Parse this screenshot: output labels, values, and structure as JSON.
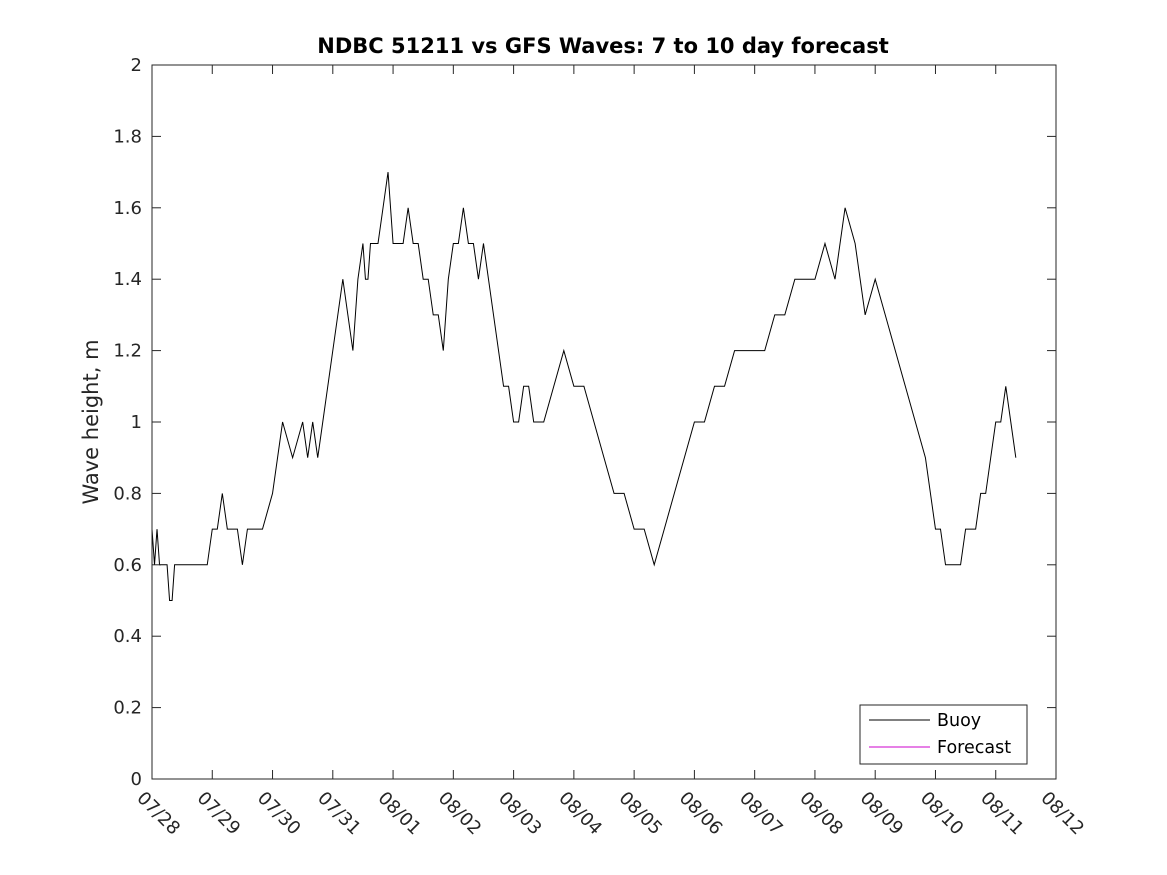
{
  "chart_data": {
    "type": "line",
    "title": "NDBC 51211 vs GFS Waves: 7 to 10 day forecast",
    "xlabel": "",
    "ylabel": "Wave height, m",
    "ylim": [
      0,
      2
    ],
    "yticks": [
      0,
      0.2,
      0.4,
      0.6,
      0.8,
      1,
      1.2,
      1.4,
      1.6,
      1.8,
      2
    ],
    "ytick_labels": [
      "0",
      "0.2",
      "0.4",
      "0.6",
      "0.8",
      "1",
      "1.2",
      "1.4",
      "1.6",
      "1.8",
      "2"
    ],
    "xlim": [
      "07/28",
      "08/12"
    ],
    "xtick_labels": [
      "07/28",
      "07/29",
      "07/30",
      "07/31",
      "08/01",
      "08/02",
      "08/03",
      "08/04",
      "08/05",
      "08/06",
      "08/07",
      "08/08",
      "08/09",
      "08/10",
      "08/11",
      "08/12"
    ],
    "grid": false,
    "legend": {
      "position": "bottom-right",
      "entries": [
        "Buoy",
        "Forecast"
      ]
    },
    "series": [
      {
        "name": "Buoy",
        "color": "#000000",
        "x": [
          "07/28 00:00",
          "07/28 01:00",
          "07/28 02:00",
          "07/28 03:00",
          "07/28 04:00",
          "07/28 05:00",
          "07/28 06:00",
          "07/28 07:00",
          "07/28 08:00",
          "07/28 09:00",
          "07/28 10:00",
          "07/28 12:00",
          "07/28 14:00",
          "07/28 16:00",
          "07/28 18:00",
          "07/28 20:00",
          "07/28 22:00",
          "07/29 00:00",
          "07/29 02:00",
          "07/29 04:00",
          "07/29 06:00",
          "07/29 08:00",
          "07/29 10:00",
          "07/29 12:00",
          "07/29 14:00",
          "07/29 16:00",
          "07/29 18:00",
          "07/29 20:00",
          "07/30 00:00",
          "07/30 04:00",
          "07/30 08:00",
          "07/30 12:00",
          "07/30 14:00",
          "07/30 16:00",
          "07/30 18:00",
          "07/30 20:00",
          "07/30 22:00",
          "07/31 00:00",
          "07/31 02:00",
          "07/31 04:00",
          "07/31 06:00",
          "07/31 08:00",
          "07/31 10:00",
          "07/31 12:00",
          "07/31 13:00",
          "07/31 14:00",
          "07/31 15:00",
          "07/31 16:00",
          "07/31 18:00",
          "07/31 20:00",
          "07/31 22:00",
          "08/01 00:00",
          "08/01 02:00",
          "08/01 04:00",
          "08/01 06:00",
          "08/01 08:00",
          "08/01 10:00",
          "08/01 12:00",
          "08/01 14:00",
          "08/01 16:00",
          "08/01 18:00",
          "08/01 20:00",
          "08/01 22:00",
          "08/02 00:00",
          "08/02 02:00",
          "08/02 04:00",
          "08/02 06:00",
          "08/02 08:00",
          "08/02 10:00",
          "08/02 12:00",
          "08/02 14:00",
          "08/02 16:00",
          "08/02 18:00",
          "08/02 20:00",
          "08/02 22:00",
          "08/03 00:00",
          "08/03 02:00",
          "08/03 04:00",
          "08/03 06:00",
          "08/03 08:00",
          "08/03 10:00",
          "08/03 12:00",
          "08/03 16:00",
          "08/03 20:00",
          "08/04 00:00",
          "08/04 04:00",
          "08/04 08:00",
          "08/04 12:00",
          "08/04 16:00",
          "08/04 20:00",
          "08/05 00:00",
          "08/05 04:00",
          "08/05 08:00",
          "08/05 12:00",
          "08/05 16:00",
          "08/05 20:00",
          "08/06 00:00",
          "08/06 04:00",
          "08/06 08:00",
          "08/06 12:00",
          "08/06 16:00",
          "08/06 20:00",
          "08/07 00:00",
          "08/07 04:00",
          "08/07 08:00",
          "08/07 12:00",
          "08/07 16:00",
          "08/07 20:00",
          "08/08 00:00",
          "08/08 04:00",
          "08/08 08:00",
          "08/08 12:00",
          "08/08 16:00",
          "08/08 20:00",
          "08/09 00:00",
          "08/09 04:00",
          "08/09 08:00",
          "08/09 12:00",
          "08/09 16:00",
          "08/09 20:00",
          "08/10 00:00",
          "08/10 02:00",
          "08/10 04:00",
          "08/10 06:00",
          "08/10 08:00",
          "08/10 10:00",
          "08/10 12:00",
          "08/10 14:00",
          "08/10 16:00",
          "08/10 18:00",
          "08/10 20:00",
          "08/10 22:00",
          "08/11 00:00",
          "08/11 02:00",
          "08/11 04:00",
          "08/11 06:00",
          "08/11 08:00"
        ],
        "y": [
          0.7,
          0.6,
          0.7,
          0.6,
          0.6,
          0.6,
          0.6,
          0.5,
          0.5,
          0.6,
          0.6,
          0.6,
          0.6,
          0.6,
          0.6,
          0.6,
          0.6,
          0.7,
          0.7,
          0.8,
          0.7,
          0.7,
          0.7,
          0.6,
          0.7,
          0.7,
          0.7,
          0.7,
          0.8,
          1.0,
          0.9,
          1.0,
          0.9,
          1.0,
          0.9,
          1.0,
          1.1,
          1.2,
          1.3,
          1.4,
          1.3,
          1.2,
          1.4,
          1.5,
          1.4,
          1.4,
          1.5,
          1.5,
          1.5,
          1.6,
          1.7,
          1.5,
          1.5,
          1.5,
          1.6,
          1.5,
          1.5,
          1.4,
          1.4,
          1.3,
          1.3,
          1.2,
          1.4,
          1.5,
          1.5,
          1.6,
          1.5,
          1.5,
          1.4,
          1.5,
          1.4,
          1.3,
          1.2,
          1.1,
          1.1,
          1.0,
          1.0,
          1.1,
          1.1,
          1.0,
          1.0,
          1.0,
          1.1,
          1.2,
          1.1,
          1.1,
          1.0,
          0.9,
          0.8,
          0.8,
          0.7,
          0.7,
          0.6,
          0.7,
          0.8,
          0.9,
          1.0,
          1.0,
          1.1,
          1.1,
          1.2,
          1.2,
          1.2,
          1.2,
          1.3,
          1.3,
          1.4,
          1.4,
          1.4,
          1.5,
          1.4,
          1.6,
          1.5,
          1.3,
          1.4,
          1.3,
          1.2,
          1.1,
          1.0,
          0.9,
          0.7,
          0.7,
          0.6,
          0.6,
          0.6,
          0.6,
          0.7,
          0.7,
          0.7,
          0.8,
          0.8,
          0.9,
          1.0,
          1.0,
          1.1,
          1.0,
          0.9
        ]
      },
      {
        "name": "Forecast",
        "color": "#cc00cc",
        "x": [],
        "y": []
      }
    ]
  }
}
